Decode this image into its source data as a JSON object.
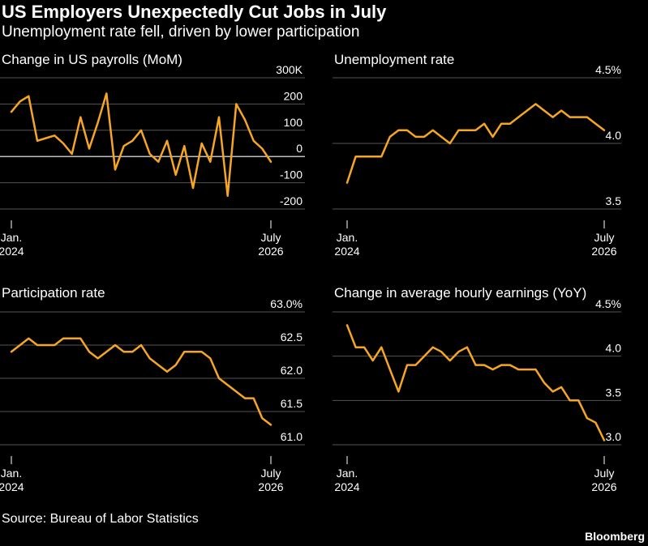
{
  "title": "US Employers Unexpectedly Cut Jobs in July",
  "subtitle": "Unemployment rate fell, driven by lower participation",
  "source": "Source: Bureau of Labor Statistics",
  "brand": "Bloomberg",
  "colors": {
    "line": "#f6a623",
    "grid": "#555555",
    "zero": "#ffffff",
    "background": "#000000"
  },
  "chart_data": [
    {
      "type": "line",
      "title": "Change in US payrolls (MoM)",
      "x_tick_labels": [
        [
          "Jan.",
          "2024"
        ],
        [
          "July",
          "2026"
        ]
      ],
      "y_ticks": [
        300,
        200,
        100,
        0,
        -100,
        -200
      ],
      "y_tick_labels": [
        "300K",
        "200",
        "100",
        "0",
        "-100",
        "-200"
      ],
      "ylim": [
        -200,
        300
      ],
      "zero_line": 0,
      "series": [
        {
          "values": [
            170,
            210,
            230,
            60,
            70,
            80,
            50,
            10,
            150,
            30,
            130,
            240,
            -50,
            40,
            60,
            100,
            10,
            -20,
            60,
            -70,
            40,
            -120,
            50,
            -20,
            150,
            -150,
            200,
            140,
            60,
            30,
            -20
          ]
        }
      ]
    },
    {
      "type": "line",
      "title": "Unemployment rate",
      "x_tick_labels": [
        [
          "Jan.",
          "2024"
        ],
        [
          "July",
          "2026"
        ]
      ],
      "y_ticks": [
        4.5,
        4.0,
        3.5
      ],
      "y_tick_labels": [
        "4.5%",
        "4.0",
        "3.5"
      ],
      "ylim": [
        3.5,
        4.5
      ],
      "series": [
        {
          "values": [
            3.7,
            3.9,
            3.9,
            3.9,
            3.9,
            4.05,
            4.1,
            4.1,
            4.05,
            4.05,
            4.1,
            4.05,
            4.0,
            4.1,
            4.1,
            4.1,
            4.15,
            4.05,
            4.15,
            4.15,
            4.2,
            4.25,
            4.3,
            4.25,
            4.2,
            4.25,
            4.2,
            4.2,
            4.2,
            4.15,
            4.1
          ]
        }
      ]
    },
    {
      "type": "line",
      "title": "Participation rate",
      "x_tick_labels": [
        [
          "Jan.",
          "2024"
        ],
        [
          "July",
          "2026"
        ]
      ],
      "y_ticks": [
        63.0,
        62.5,
        62.0,
        61.5,
        61.0
      ],
      "y_tick_labels": [
        "63.0%",
        "62.5",
        "62.0",
        "61.5",
        "61.0"
      ],
      "ylim": [
        61.0,
        63.0
      ],
      "series": [
        {
          "values": [
            62.4,
            62.5,
            62.6,
            62.5,
            62.5,
            62.5,
            62.6,
            62.6,
            62.6,
            62.4,
            62.3,
            62.4,
            62.5,
            62.4,
            62.4,
            62.5,
            62.3,
            62.2,
            62.1,
            62.2,
            62.4,
            62.4,
            62.4,
            62.3,
            62.0,
            61.9,
            61.8,
            61.7,
            61.7,
            61.4,
            61.3
          ]
        }
      ]
    },
    {
      "type": "line",
      "title": "Change in average hourly earnings (YoY)",
      "x_tick_labels": [
        [
          "Jan.",
          "2024"
        ],
        [
          "July",
          "2026"
        ]
      ],
      "y_ticks": [
        4.5,
        4.0,
        3.5,
        3.0
      ],
      "y_tick_labels": [
        "4.5%",
        "4.0",
        "3.5",
        "3.0"
      ],
      "ylim": [
        3.0,
        4.5
      ],
      "series": [
        {
          "values": [
            4.35,
            4.1,
            4.1,
            3.95,
            4.1,
            3.85,
            3.6,
            3.9,
            3.9,
            4.0,
            4.1,
            4.05,
            3.95,
            4.05,
            4.1,
            3.9,
            3.9,
            3.85,
            3.9,
            3.9,
            3.85,
            3.85,
            3.85,
            3.7,
            3.6,
            3.65,
            3.5,
            3.5,
            3.3,
            3.25,
            3.05
          ]
        }
      ]
    }
  ]
}
